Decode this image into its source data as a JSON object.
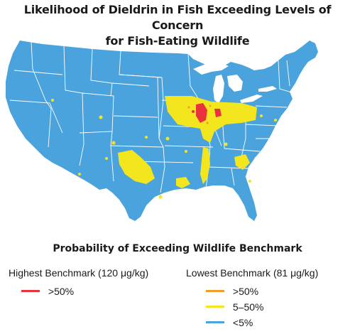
{
  "title": {
    "line1": "Likelihood of Dieldrin in Fish Exceeding Levels of Concern",
    "line2": "for Fish-Eating Wildlife"
  },
  "map": {
    "region": "Conterminous United States",
    "colors": {
      "land": "#4aa3dc",
      "state_border": "#ffffff",
      "high": "#e8323c",
      "mid": "#f4e61e",
      "orange": "#f39c2a"
    }
  },
  "legend": {
    "heading": "Probability of Exceeding Wildlife Benchmark",
    "highest": {
      "title": "Highest Benchmark (120 μg/kg)",
      "entries": [
        {
          "label": ">50%",
          "color": "#e8323c"
        }
      ]
    },
    "lowest": {
      "title": "Lowest Benchmark (81 μg/kg)",
      "entries": [
        {
          "label": ">50%",
          "color": "#f39c2a"
        },
        {
          "label": "5–50%",
          "color": "#f4e61e"
        },
        {
          "label": "<5%",
          "color": "#4aa3dc"
        }
      ]
    }
  }
}
